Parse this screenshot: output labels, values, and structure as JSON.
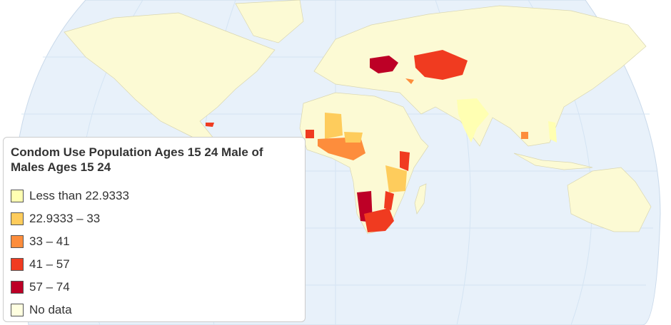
{
  "legend": {
    "title": "Condom Use Population Ages 15 24 Male of Males Ages 15 24",
    "items": [
      {
        "label": "Less than 22.9333",
        "color": "#ffffb2"
      },
      {
        "label": "22.9333 – 33",
        "color": "#fecc5c"
      },
      {
        "label": "33 – 41",
        "color": "#fd8d3c"
      },
      {
        "label": "41 – 57",
        "color": "#f03b20"
      },
      {
        "label": "57 – 74",
        "color": "#bd0026"
      },
      {
        "label": "No data",
        "color": "#ffffe0"
      }
    ]
  }
}
